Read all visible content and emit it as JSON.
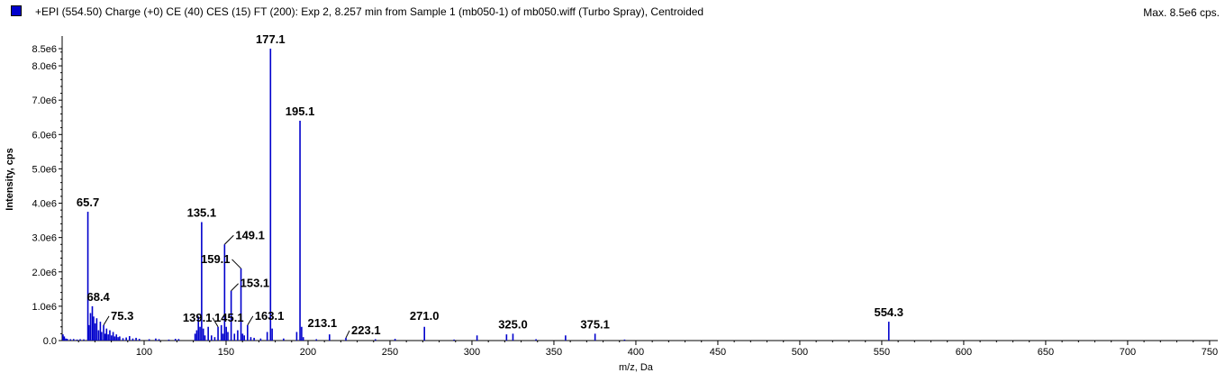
{
  "header": {
    "title": "+EPI (554.50) Charge (+0) CE (40) CES (15) FT (200): Exp 2, 8.257 min from Sample 1 (mb050-1) of mb050.wiff (Turbo Spray), Centroided",
    "max_label": "Max. 8.5e6 cps.",
    "series_color": "#0000cc"
  },
  "chart_data": {
    "type": "bar",
    "xlabel": "m/z, Da",
    "ylabel": "Intensity, cps",
    "xlim": [
      50,
      755
    ],
    "ylim": [
      0,
      8500000.0
    ],
    "x_ticks": [
      100,
      150,
      200,
      250,
      300,
      350,
      400,
      450,
      500,
      550,
      600,
      650,
      700,
      750
    ],
    "x_tick_labels": [
      "100",
      "150",
      "200",
      "250",
      "300",
      "350",
      "400",
      "450",
      "500",
      "550",
      "600",
      "650",
      "700",
      "750"
    ],
    "y_ticks": [
      0,
      1000000,
      2000000,
      3000000,
      4000000,
      5000000,
      6000000,
      7000000,
      8000000,
      8500000
    ],
    "y_tick_labels": [
      "0.0",
      "1.0e6",
      "2.0e6",
      "3.0e6",
      "4.0e6",
      "5.0e6",
      "6.0e6",
      "7.0e6",
      "8.0e6",
      "8.5e6"
    ],
    "peaks": [
      {
        "mz": 50.5,
        "intensity": 180000
      },
      {
        "mz": 51.3,
        "intensity": 120000
      },
      {
        "mz": 52.2,
        "intensity": 60000
      },
      {
        "mz": 53.1,
        "intensity": 50000
      },
      {
        "mz": 55.1,
        "intensity": 40000
      },
      {
        "mz": 57.0,
        "intensity": 45000
      },
      {
        "mz": 59.1,
        "intensity": 30000
      },
      {
        "mz": 61.0,
        "intensity": 40000
      },
      {
        "mz": 63.2,
        "intensity": 35000
      },
      {
        "mz": 65.7,
        "intensity": 3750000
      },
      {
        "mz": 66.4,
        "intensity": 450000
      },
      {
        "mz": 67.3,
        "intensity": 800000
      },
      {
        "mz": 68.4,
        "intensity": 1000000
      },
      {
        "mz": 69.2,
        "intensity": 700000
      },
      {
        "mz": 70.1,
        "intensity": 500000
      },
      {
        "mz": 71.1,
        "intensity": 650000
      },
      {
        "mz": 72.2,
        "intensity": 300000
      },
      {
        "mz": 73.3,
        "intensity": 550000
      },
      {
        "mz": 74.1,
        "intensity": 250000
      },
      {
        "mz": 75.3,
        "intensity": 450000
      },
      {
        "mz": 76.2,
        "intensity": 200000
      },
      {
        "mz": 77.1,
        "intensity": 350000
      },
      {
        "mz": 78.1,
        "intensity": 180000
      },
      {
        "mz": 79.1,
        "intensity": 300000
      },
      {
        "mz": 80.1,
        "intensity": 150000
      },
      {
        "mz": 81.1,
        "intensity": 250000
      },
      {
        "mz": 82.1,
        "intensity": 120000
      },
      {
        "mz": 83.1,
        "intensity": 180000
      },
      {
        "mz": 84.1,
        "intensity": 100000
      },
      {
        "mz": 85.1,
        "intensity": 120000
      },
      {
        "mz": 87.1,
        "intensity": 70000
      },
      {
        "mz": 89.1,
        "intensity": 90000
      },
      {
        "mz": 91.1,
        "intensity": 130000
      },
      {
        "mz": 93.1,
        "intensity": 60000
      },
      {
        "mz": 95.1,
        "intensity": 80000
      },
      {
        "mz": 97.1,
        "intensity": 50000
      },
      {
        "mz": 103.1,
        "intensity": 40000
      },
      {
        "mz": 107.1,
        "intensity": 60000
      },
      {
        "mz": 109.1,
        "intensity": 40000
      },
      {
        "mz": 115.1,
        "intensity": 30000
      },
      {
        "mz": 119.1,
        "intensity": 50000
      },
      {
        "mz": 121.1,
        "intensity": 45000
      },
      {
        "mz": 131.1,
        "intensity": 200000
      },
      {
        "mz": 132.1,
        "intensity": 300000
      },
      {
        "mz": 133.1,
        "intensity": 700000
      },
      {
        "mz": 134.1,
        "intensity": 400000
      },
      {
        "mz": 135.1,
        "intensity": 3450000
      },
      {
        "mz": 136.1,
        "intensity": 350000
      },
      {
        "mz": 137.1,
        "intensity": 150000
      },
      {
        "mz": 139.1,
        "intensity": 400000
      },
      {
        "mz": 141.1,
        "intensity": 150000
      },
      {
        "mz": 143.1,
        "intensity": 100000
      },
      {
        "mz": 145.1,
        "intensity": 400000
      },
      {
        "mz": 147.1,
        "intensity": 450000
      },
      {
        "mz": 148.1,
        "intensity": 200000
      },
      {
        "mz": 149.1,
        "intensity": 2800000
      },
      {
        "mz": 150.1,
        "intensity": 400000
      },
      {
        "mz": 151.1,
        "intensity": 250000
      },
      {
        "mz": 153.1,
        "intensity": 1450000
      },
      {
        "mz": 155.1,
        "intensity": 200000
      },
      {
        "mz": 157.1,
        "intensity": 300000
      },
      {
        "mz": 159.1,
        "intensity": 2100000
      },
      {
        "mz": 160.1,
        "intensity": 200000
      },
      {
        "mz": 161.1,
        "intensity": 150000
      },
      {
        "mz": 163.1,
        "intensity": 450000
      },
      {
        "mz": 165.1,
        "intensity": 100000
      },
      {
        "mz": 167.1,
        "intensity": 80000
      },
      {
        "mz": 171.1,
        "intensity": 60000
      },
      {
        "mz": 175.1,
        "intensity": 250000
      },
      {
        "mz": 177.1,
        "intensity": 8500000
      },
      {
        "mz": 178.1,
        "intensity": 350000
      },
      {
        "mz": 185.1,
        "intensity": 60000
      },
      {
        "mz": 193.1,
        "intensity": 250000
      },
      {
        "mz": 195.1,
        "intensity": 6400000
      },
      {
        "mz": 196.1,
        "intensity": 400000
      },
      {
        "mz": 197.1,
        "intensity": 100000
      },
      {
        "mz": 205.1,
        "intensity": 40000
      },
      {
        "mz": 213.1,
        "intensity": 180000
      },
      {
        "mz": 223.1,
        "intensity": 80000
      },
      {
        "mz": 241.1,
        "intensity": 40000
      },
      {
        "mz": 253.1,
        "intensity": 50000
      },
      {
        "mz": 271.0,
        "intensity": 400000
      },
      {
        "mz": 289.1,
        "intensity": 30000
      },
      {
        "mz": 303.1,
        "intensity": 150000
      },
      {
        "mz": 321.1,
        "intensity": 180000
      },
      {
        "mz": 325.0,
        "intensity": 200000
      },
      {
        "mz": 339.1,
        "intensity": 40000
      },
      {
        "mz": 357.1,
        "intensity": 150000
      },
      {
        "mz": 375.1,
        "intensity": 200000
      },
      {
        "mz": 393.1,
        "intensity": 30000
      },
      {
        "mz": 554.3,
        "intensity": 550000
      }
    ],
    "annotations": [
      {
        "text": "177.1",
        "mz": 177.1,
        "intensity": 8500000
      },
      {
        "text": "195.1",
        "mz": 195.1,
        "intensity": 6400000
      },
      {
        "text": "65.7",
        "mz": 65.7,
        "intensity": 3750000
      },
      {
        "text": "135.1",
        "mz": 135.1,
        "intensity": 3450000
      },
      {
        "text": "149.1",
        "mz": 149.1,
        "intensity": 2800000
      },
      {
        "text": "159.1",
        "mz": 159.1,
        "intensity": 2100000
      },
      {
        "text": "153.1",
        "mz": 153.1,
        "intensity": 1450000
      },
      {
        "text": "68.4",
        "mz": 68.4,
        "intensity": 1000000
      },
      {
        "text": "75.3",
        "mz": 75.3,
        "intensity": 450000
      },
      {
        "text": "139.1",
        "mz": 139.1,
        "intensity": 400000
      },
      {
        "text": "145.1",
        "mz": 145.1,
        "intensity": 400000
      },
      {
        "text": "163.1",
        "mz": 163.1,
        "intensity": 450000
      },
      {
        "text": "213.1",
        "mz": 213.1,
        "intensity": 180000
      },
      {
        "text": "223.1",
        "mz": 223.1,
        "intensity": 80000
      },
      {
        "text": "271.0",
        "mz": 271.0,
        "intensity": 400000
      },
      {
        "text": "325.0",
        "mz": 325.0,
        "intensity": 200000
      },
      {
        "text": "375.1",
        "mz": 375.1,
        "intensity": 200000
      },
      {
        "text": "554.3",
        "mz": 554.3,
        "intensity": 550000
      }
    ]
  }
}
